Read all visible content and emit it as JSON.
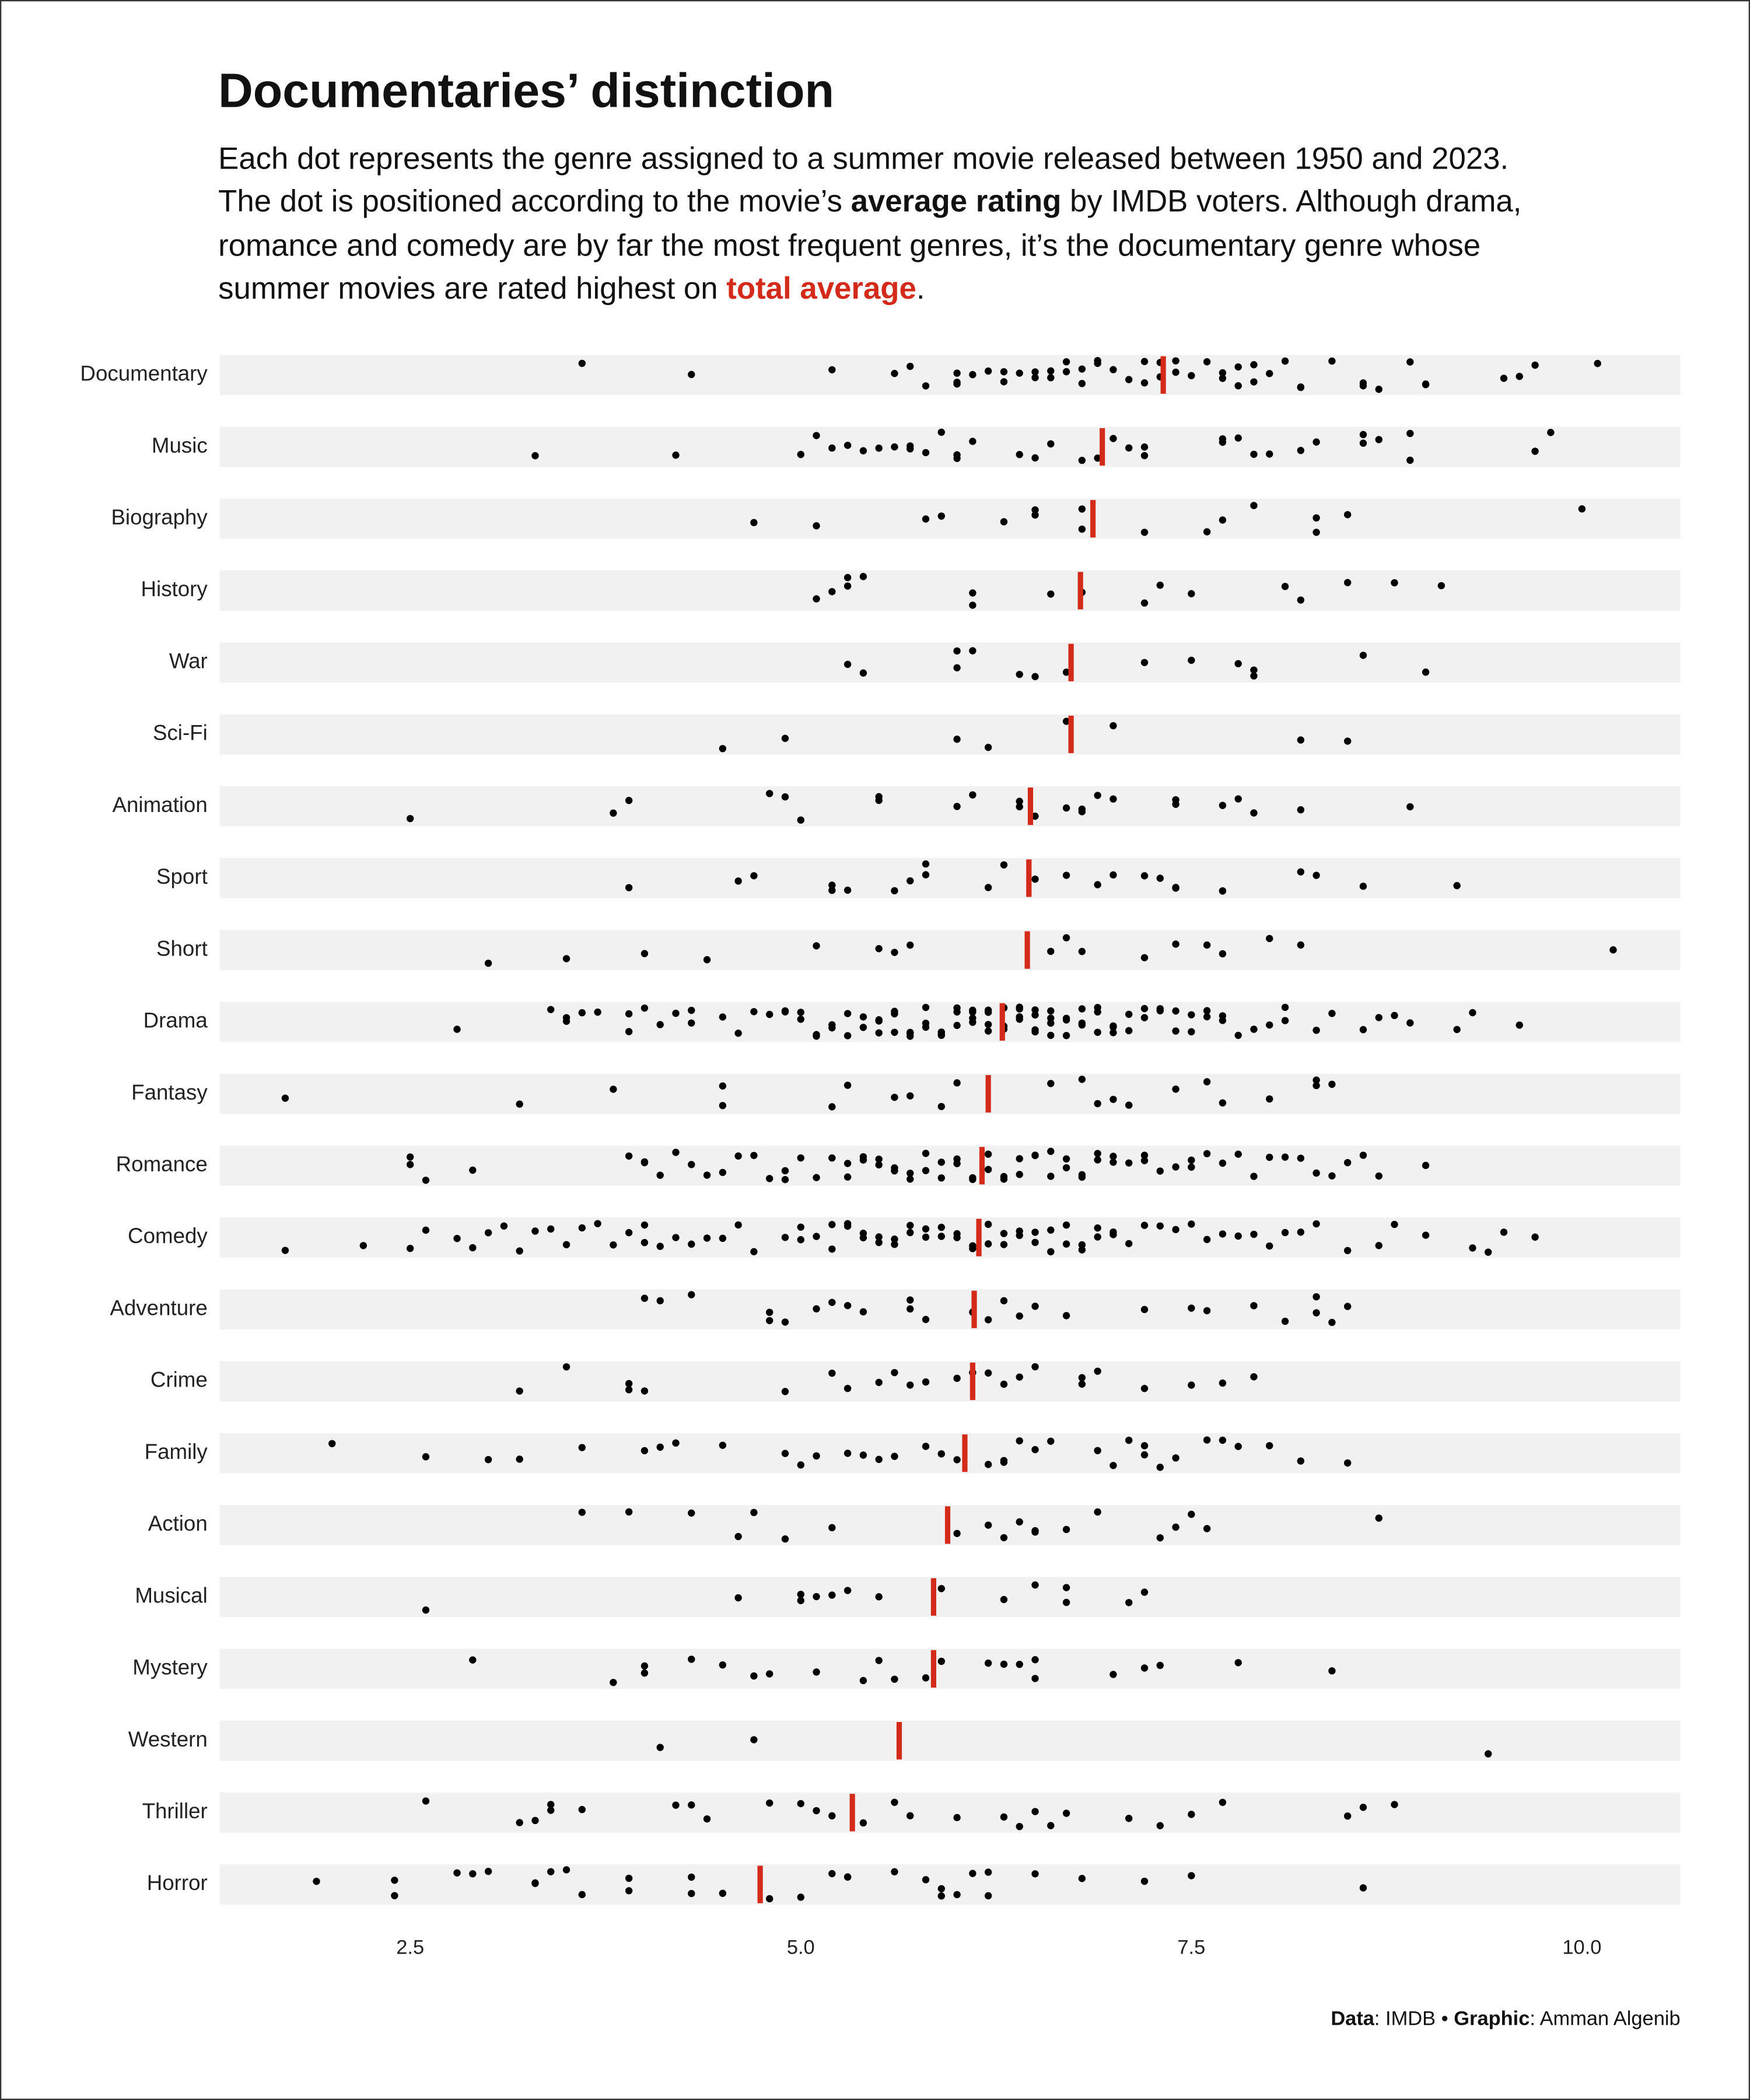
{
  "chart_data": {
    "type": "strip",
    "title": "Documentaries’ distinction",
    "subtitle": [
      "Each dot represents the genre assigned to a summer movie released between 1950 and 2023.",
      "The dot is positioned according to the movie’s ",
      "average rating",
      " by IMDB voters. Although drama,",
      "romance and comedy are by far the most frequent genres, it’s the documentary genre whose",
      "summer movies are rated highest on ",
      "total average",
      "."
    ],
    "caption": [
      "Data",
      ": IMDB • ",
      "Graphic",
      ": Amman Algenib"
    ],
    "color": "#000000",
    "mean_color": "#d32a1a",
    "xlim": [
      1.28,
      10.63
    ],
    "xticks": [
      2.5,
      {
        "value": 5,
        "label": "5.0"
      },
      7.5,
      {
        "value": 10,
        "label": "10.0"
      }
    ],
    "categories": [
      "Documentary",
      "Music",
      "Biography",
      "History",
      "War",
      "Sci-Fi",
      "Animation",
      "Sport",
      "Short",
      "Drama",
      "Fantasy",
      "Romance",
      "Comedy",
      "Adventure",
      "Crime",
      "Family",
      "Action",
      "Musical",
      "Mystery",
      "Western",
      "Thriller",
      "Horror"
    ],
    "means": [
      7.32,
      6.93,
      6.87,
      6.79,
      6.73,
      6.73,
      6.47,
      6.46,
      6.45,
      6.29,
      6.2,
      6.16,
      6.14,
      6.11,
      6.1,
      6.05,
      5.94,
      5.85,
      5.85,
      5.63,
      5.33,
      4.74
    ],
    "values": [
      [
        3.6,
        4.3,
        5.2,
        5.6,
        5.7,
        5.8,
        6.0,
        6.0,
        6.0,
        6.1,
        6.2,
        6.3,
        6.3,
        6.4,
        6.5,
        6.5,
        6.6,
        6.6,
        6.7,
        6.7,
        6.8,
        6.8,
        6.9,
        6.9,
        7.0,
        7.1,
        7.2,
        7.2,
        7.3,
        7.3,
        7.4,
        7.4,
        7.5,
        7.6,
        7.7,
        7.7,
        7.8,
        7.8,
        7.9,
        7.9,
        8.0,
        8.1,
        8.2,
        8.2,
        8.4,
        8.6,
        8.6,
        8.7,
        8.9,
        9.0,
        9.0,
        9.5,
        9.6,
        9.7,
        10.1
      ],
      [
        3.3,
        4.2,
        5.0,
        5.1,
        5.2,
        5.3,
        5.4,
        5.5,
        5.6,
        5.7,
        5.7,
        5.8,
        5.9,
        6.0,
        6.0,
        6.1,
        6.4,
        6.5,
        6.6,
        6.8,
        6.9,
        7.0,
        7.1,
        7.2,
        7.2,
        7.7,
        7.7,
        7.8,
        7.9,
        8.0,
        8.2,
        8.3,
        8.6,
        8.6,
        8.7,
        8.9,
        8.9,
        9.7,
        9.8
      ],
      [
        4.7,
        5.1,
        5.8,
        5.9,
        6.3,
        6.5,
        6.5,
        6.8,
        6.8,
        7.2,
        7.6,
        7.7,
        7.9,
        8.3,
        8.3,
        8.5,
        10.0
      ],
      [
        5.1,
        5.2,
        5.3,
        5.3,
        5.4,
        6.1,
        6.1,
        6.6,
        6.8,
        7.2,
        7.3,
        7.5,
        8.1,
        8.2,
        8.5,
        8.8,
        9.1
      ],
      [
        5.3,
        5.4,
        6.0,
        6.0,
        6.1,
        6.4,
        6.5,
        6.7,
        7.2,
        7.5,
        7.8,
        7.9,
        7.9,
        8.6,
        9.0
      ],
      [
        4.5,
        4.9,
        6.0,
        6.2,
        6.7,
        7.0,
        8.2,
        8.5
      ],
      [
        2.5,
        3.8,
        3.9,
        4.8,
        4.9,
        5.0,
        5.5,
        5.5,
        6.0,
        6.1,
        6.4,
        6.4,
        6.5,
        6.7,
        6.8,
        6.8,
        6.9,
        7.0,
        7.4,
        7.4,
        7.7,
        7.8,
        7.9,
        8.2,
        8.9
      ],
      [
        3.9,
        4.6,
        4.7,
        5.2,
        5.2,
        5.3,
        5.6,
        5.7,
        5.8,
        5.8,
        6.2,
        6.3,
        6.5,
        6.7,
        6.9,
        7.0,
        7.2,
        7.3,
        7.4,
        7.4,
        7.7,
        7.7,
        8.2,
        8.3,
        8.6,
        9.2
      ],
      [
        3.0,
        3.5,
        4.0,
        4.4,
        5.1,
        5.5,
        5.6,
        5.7,
        6.6,
        6.7,
        6.8,
        7.2,
        7.4,
        7.6,
        7.7,
        8.0,
        8.2,
        10.2
      ],
      [
        2.8,
        3.4,
        3.5,
        3.5,
        3.6,
        3.7,
        3.9,
        3.9,
        4.0,
        4.1,
        4.2,
        4.3,
        4.3,
        4.5,
        4.6,
        4.7,
        4.8,
        4.9,
        4.9,
        5.0,
        5.0,
        5.1,
        5.1,
        5.2,
        5.2,
        5.3,
        5.3,
        5.4,
        5.4,
        5.5,
        5.5,
        5.5,
        5.6,
        5.6,
        5.6,
        5.7,
        5.7,
        5.7,
        5.8,
        5.8,
        5.8,
        5.9,
        5.9,
        5.9,
        6.0,
        6.0,
        6.0,
        6.1,
        6.1,
        6.1,
        6.1,
        6.2,
        6.2,
        6.2,
        6.2,
        6.3,
        6.3,
        6.3,
        6.3,
        6.4,
        6.4,
        6.4,
        6.4,
        6.5,
        6.5,
        6.5,
        6.5,
        6.6,
        6.6,
        6.6,
        6.6,
        6.7,
        6.7,
        6.7,
        6.8,
        6.8,
        6.8,
        6.9,
        6.9,
        6.9,
        7.0,
        7.0,
        7.0,
        7.1,
        7.1,
        7.2,
        7.2,
        7.3,
        7.3,
        7.4,
        7.4,
        7.5,
        7.5,
        7.6,
        7.6,
        7.7,
        7.7,
        7.8,
        7.9,
        8.0,
        8.1,
        8.1,
        8.3,
        8.4,
        8.6,
        8.7,
        8.8,
        8.9,
        9.2,
        9.3,
        9.6
      ],
      [
        1.7,
        3.2,
        3.8,
        4.5,
        4.5,
        5.2,
        5.3,
        5.6,
        5.7,
        5.9,
        6.0,
        6.6,
        6.8,
        6.9,
        7.0,
        7.1,
        7.4,
        7.6,
        7.7,
        8.0,
        8.3,
        8.3,
        8.4
      ],
      [
        2.5,
        2.5,
        2.6,
        2.9,
        3.9,
        4.0,
        4.0,
        4.1,
        4.2,
        4.3,
        4.4,
        4.5,
        4.6,
        4.7,
        4.8,
        4.9,
        4.9,
        5.0,
        5.1,
        5.2,
        5.3,
        5.3,
        5.4,
        5.4,
        5.5,
        5.5,
        5.6,
        5.6,
        5.7,
        5.7,
        5.8,
        5.8,
        5.9,
        5.9,
        6.0,
        6.0,
        6.1,
        6.1,
        6.2,
        6.2,
        6.3,
        6.3,
        6.4,
        6.4,
        6.5,
        6.5,
        6.6,
        6.6,
        6.7,
        6.7,
        6.8,
        6.8,
        6.9,
        6.9,
        7.0,
        7.0,
        7.1,
        7.2,
        7.2,
        7.3,
        7.4,
        7.5,
        7.5,
        7.6,
        7.7,
        7.8,
        7.9,
        8.0,
        8.1,
        8.2,
        8.3,
        8.4,
        8.5,
        8.6,
        8.7,
        9.0
      ],
      [
        1.7,
        2.2,
        2.5,
        2.6,
        2.8,
        2.9,
        3.0,
        3.1,
        3.2,
        3.3,
        3.4,
        3.5,
        3.6,
        3.7,
        3.8,
        3.9,
        4.0,
        4.0,
        4.1,
        4.2,
        4.3,
        4.4,
        4.5,
        4.6,
        4.7,
        4.9,
        5.0,
        5.0,
        5.1,
        5.2,
        5.2,
        5.3,
        5.3,
        5.4,
        5.4,
        5.5,
        5.5,
        5.6,
        5.6,
        5.7,
        5.7,
        5.8,
        5.8,
        5.9,
        5.9,
        6.0,
        6.0,
        6.1,
        6.1,
        6.2,
        6.2,
        6.3,
        6.3,
        6.4,
        6.4,
        6.5,
        6.5,
        6.6,
        6.6,
        6.7,
        6.7,
        6.8,
        6.8,
        6.9,
        6.9,
        7.0,
        7.0,
        7.1,
        7.2,
        7.3,
        7.4,
        7.5,
        7.6,
        7.7,
        7.8,
        7.9,
        8.0,
        8.1,
        8.2,
        8.3,
        8.5,
        8.7,
        8.8,
        9.0,
        9.3,
        9.4,
        9.5,
        9.7
      ],
      [
        4.0,
        4.1,
        4.3,
        4.8,
        4.8,
        4.9,
        5.1,
        5.2,
        5.3,
        5.4,
        5.7,
        5.7,
        5.8,
        6.1,
        6.2,
        6.3,
        6.4,
        6.5,
        6.7,
        7.2,
        7.5,
        7.6,
        7.9,
        8.1,
        8.3,
        8.3,
        8.4,
        8.5
      ],
      [
        3.2,
        3.5,
        3.9,
        3.9,
        4.0,
        4.9,
        5.2,
        5.3,
        5.5,
        5.6,
        5.7,
        5.8,
        6.0,
        6.1,
        6.2,
        6.3,
        6.4,
        6.5,
        6.8,
        6.8,
        6.9,
        7.2,
        7.5,
        7.7,
        7.9
      ],
      [
        2.0,
        2.6,
        3.0,
        3.2,
        3.6,
        4.0,
        4.1,
        4.2,
        4.5,
        4.9,
        5.0,
        5.1,
        5.3,
        5.4,
        5.5,
        5.6,
        5.8,
        5.9,
        6.0,
        6.2,
        6.3,
        6.3,
        6.4,
        6.5,
        6.6,
        6.9,
        7.0,
        7.1,
        7.2,
        7.2,
        7.3,
        7.4,
        7.6,
        7.7,
        7.8,
        8.0,
        8.2,
        8.5
      ],
      [
        3.6,
        3.9,
        4.3,
        4.6,
        4.7,
        4.9,
        5.2,
        6.0,
        6.2,
        6.3,
        6.4,
        6.5,
        6.5,
        6.7,
        6.9,
        7.3,
        7.4,
        7.5,
        7.6,
        8.7
      ],
      [
        2.6,
        4.6,
        5.0,
        5.0,
        5.1,
        5.2,
        5.3,
        5.5,
        5.9,
        6.3,
        6.5,
        6.7,
        6.7,
        7.1,
        7.2
      ],
      [
        2.9,
        3.8,
        4.0,
        4.0,
        4.3,
        4.5,
        4.7,
        4.8,
        5.1,
        5.4,
        5.5,
        5.6,
        5.8,
        5.9,
        6.2,
        6.3,
        6.4,
        6.5,
        6.5,
        7.0,
        7.2,
        7.3,
        7.8,
        8.4
      ],
      [
        4.1,
        4.7,
        9.4
      ],
      [
        2.6,
        3.2,
        3.3,
        3.4,
        3.4,
        3.6,
        4.2,
        4.3,
        4.4,
        4.8,
        5.0,
        5.1,
        5.2,
        5.4,
        5.6,
        5.7,
        6.0,
        6.3,
        6.4,
        6.5,
        6.6,
        6.7,
        7.1,
        7.3,
        7.5,
        7.7,
        8.5,
        8.6,
        8.8
      ],
      [
        1.9,
        2.4,
        2.4,
        2.8,
        2.9,
        3.0,
        3.3,
        3.3,
        3.4,
        3.5,
        3.6,
        3.9,
        3.9,
        4.3,
        4.3,
        4.5,
        4.8,
        5.0,
        5.2,
        5.3,
        5.3,
        5.6,
        5.8,
        5.9,
        5.9,
        6.0,
        6.1,
        6.2,
        6.2,
        6.5,
        6.8,
        7.2,
        7.5,
        8.6
      ]
    ]
  }
}
